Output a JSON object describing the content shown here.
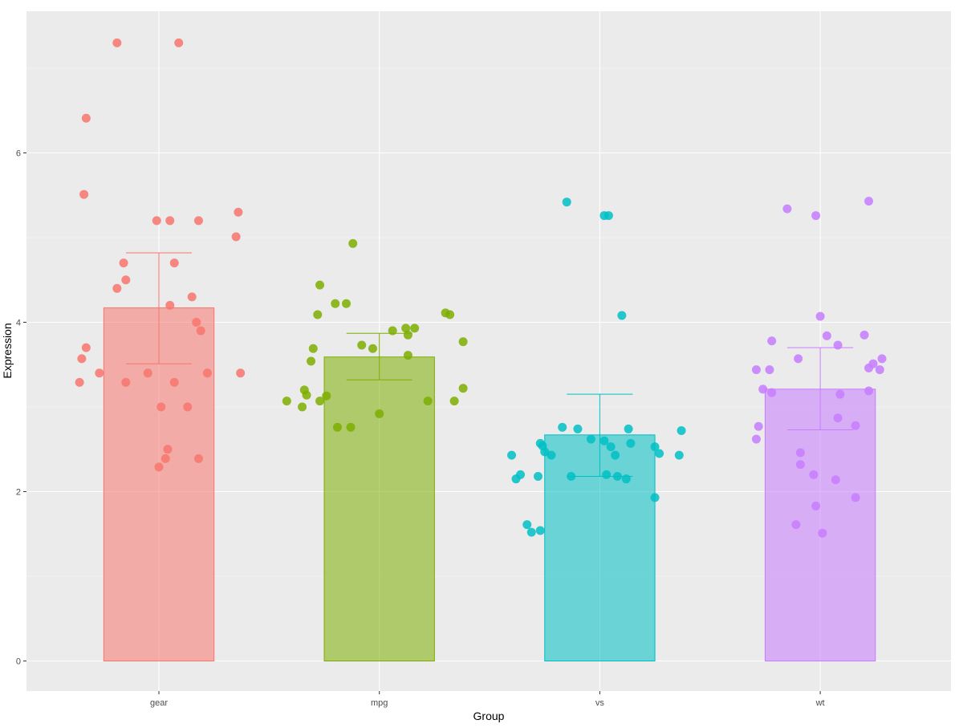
{
  "chart_data": {
    "type": "bar",
    "title": "",
    "xlabel": "Group",
    "ylabel": "Expression",
    "ylim": [
      -0.4,
      7.6
    ],
    "yticks": [
      0,
      2,
      4,
      6
    ],
    "grid": true,
    "colors": {
      "panel_bg": "#EBEBEB",
      "grid_major": "#FFFFFF",
      "grid_minor": "#F5F5F5"
    },
    "categories": [
      "gear",
      "mpg",
      "vs",
      "wt"
    ],
    "series": [
      {
        "name": "gear",
        "color": "#F8766D",
        "mean": 4.17,
        "error_low": 3.51,
        "error_high": 4.82,
        "points": [
          {
            "dx": -0.19,
            "y": 7.3
          },
          {
            "dx": 0.09,
            "y": 7.3
          },
          {
            "dx": -0.33,
            "y": 6.41
          },
          {
            "dx": -0.34,
            "y": 5.51
          },
          {
            "dx": -0.01,
            "y": 5.2
          },
          {
            "dx": 0.05,
            "y": 5.2
          },
          {
            "dx": 0.18,
            "y": 5.2
          },
          {
            "dx": 0.36,
            "y": 5.3
          },
          {
            "dx": 0.35,
            "y": 5.01
          },
          {
            "dx": -0.16,
            "y": 4.7
          },
          {
            "dx": 0.07,
            "y": 4.7
          },
          {
            "dx": -0.15,
            "y": 4.5
          },
          {
            "dx": -0.19,
            "y": 4.4
          },
          {
            "dx": 0.15,
            "y": 4.3
          },
          {
            "dx": 0.05,
            "y": 4.2
          },
          {
            "dx": 0.17,
            "y": 4.0
          },
          {
            "dx": 0.19,
            "y": 3.9
          },
          {
            "dx": -0.33,
            "y": 3.7
          },
          {
            "dx": -0.35,
            "y": 3.57
          },
          {
            "dx": -0.27,
            "y": 3.4
          },
          {
            "dx": -0.05,
            "y": 3.4
          },
          {
            "dx": 0.22,
            "y": 3.4
          },
          {
            "dx": 0.37,
            "y": 3.4
          },
          {
            "dx": -0.36,
            "y": 3.29
          },
          {
            "dx": -0.15,
            "y": 3.29
          },
          {
            "dx": 0.07,
            "y": 3.29
          },
          {
            "dx": 0.01,
            "y": 3.0
          },
          {
            "dx": 0.13,
            "y": 3.0
          },
          {
            "dx": 0.04,
            "y": 2.5
          },
          {
            "dx": 0.03,
            "y": 2.39
          },
          {
            "dx": 0.18,
            "y": 2.39
          },
          {
            "dx": 0.0,
            "y": 2.29
          }
        ]
      },
      {
        "name": "mpg",
        "color": "#7CAE00",
        "mean": 3.59,
        "error_low": 3.32,
        "error_high": 3.87,
        "points": [
          {
            "dx": -0.12,
            "y": 4.93
          },
          {
            "dx": -0.27,
            "y": 4.44
          },
          {
            "dx": -0.2,
            "y": 4.22
          },
          {
            "dx": -0.15,
            "y": 4.22
          },
          {
            "dx": -0.28,
            "y": 4.09
          },
          {
            "dx": 0.3,
            "y": 4.11
          },
          {
            "dx": 0.32,
            "y": 4.09
          },
          {
            "dx": 0.12,
            "y": 3.93
          },
          {
            "dx": 0.16,
            "y": 3.93
          },
          {
            "dx": 0.06,
            "y": 3.9
          },
          {
            "dx": 0.13,
            "y": 3.85
          },
          {
            "dx": 0.38,
            "y": 3.77
          },
          {
            "dx": -0.08,
            "y": 3.73
          },
          {
            "dx": -0.03,
            "y": 3.69
          },
          {
            "dx": -0.3,
            "y": 3.69
          },
          {
            "dx": 0.13,
            "y": 3.61
          },
          {
            "dx": -0.31,
            "y": 3.54
          },
          {
            "dx": 0.38,
            "y": 3.22
          },
          {
            "dx": -0.34,
            "y": 3.2
          },
          {
            "dx": -0.33,
            "y": 3.14
          },
          {
            "dx": -0.27,
            "y": 3.07
          },
          {
            "dx": -0.24,
            "y": 3.13
          },
          {
            "dx": -0.42,
            "y": 3.07
          },
          {
            "dx": 0.22,
            "y": 3.07
          },
          {
            "dx": 0.34,
            "y": 3.07
          },
          {
            "dx": -0.35,
            "y": 3.0
          },
          {
            "dx": 0.0,
            "y": 2.92
          },
          {
            "dx": -0.19,
            "y": 2.76
          },
          {
            "dx": -0.13,
            "y": 2.76
          }
        ]
      },
      {
        "name": "vs",
        "color": "#00BFC4",
        "mean": 2.67,
        "error_low": 2.18,
        "error_high": 3.15,
        "points": [
          {
            "dx": -0.15,
            "y": 5.42
          },
          {
            "dx": 0.02,
            "y": 5.26
          },
          {
            "dx": 0.04,
            "y": 5.26
          },
          {
            "dx": 0.1,
            "y": 4.08
          },
          {
            "dx": -0.17,
            "y": 2.76
          },
          {
            "dx": -0.1,
            "y": 2.74
          },
          {
            "dx": 0.13,
            "y": 2.74
          },
          {
            "dx": 0.37,
            "y": 2.72
          },
          {
            "dx": -0.04,
            "y": 2.62
          },
          {
            "dx": 0.02,
            "y": 2.6
          },
          {
            "dx": -0.27,
            "y": 2.57
          },
          {
            "dx": -0.26,
            "y": 2.54
          },
          {
            "dx": 0.14,
            "y": 2.57
          },
          {
            "dx": 0.05,
            "y": 2.53
          },
          {
            "dx": 0.25,
            "y": 2.53
          },
          {
            "dx": -0.25,
            "y": 2.47
          },
          {
            "dx": 0.27,
            "y": 2.45
          },
          {
            "dx": -0.4,
            "y": 2.43
          },
          {
            "dx": -0.22,
            "y": 2.43
          },
          {
            "dx": 0.07,
            "y": 2.43
          },
          {
            "dx": 0.36,
            "y": 2.43
          },
          {
            "dx": -0.36,
            "y": 2.2
          },
          {
            "dx": 0.03,
            "y": 2.2
          },
          {
            "dx": 0.08,
            "y": 2.18
          },
          {
            "dx": -0.28,
            "y": 2.18
          },
          {
            "dx": -0.13,
            "y": 2.18
          },
          {
            "dx": -0.38,
            "y": 2.15
          },
          {
            "dx": 0.12,
            "y": 2.15
          },
          {
            "dx": 0.25,
            "y": 1.93
          },
          {
            "dx": -0.33,
            "y": 1.61
          },
          {
            "dx": -0.31,
            "y": 1.52
          },
          {
            "dx": -0.27,
            "y": 1.54
          }
        ]
      },
      {
        "name": "wt",
        "color": "#C77CFF",
        "mean": 3.21,
        "error_low": 2.73,
        "error_high": 3.7,
        "points": [
          {
            "dx": 0.22,
            "y": 5.43
          },
          {
            "dx": -0.15,
            "y": 5.34
          },
          {
            "dx": -0.02,
            "y": 5.26
          },
          {
            "dx": 0.0,
            "y": 4.07
          },
          {
            "dx": 0.03,
            "y": 3.84
          },
          {
            "dx": 0.2,
            "y": 3.85
          },
          {
            "dx": -0.22,
            "y": 3.78
          },
          {
            "dx": 0.08,
            "y": 3.73
          },
          {
            "dx": -0.1,
            "y": 3.57
          },
          {
            "dx": 0.28,
            "y": 3.57
          },
          {
            "dx": 0.24,
            "y": 3.51
          },
          {
            "dx": 0.22,
            "y": 3.46
          },
          {
            "dx": 0.27,
            "y": 3.44
          },
          {
            "dx": -0.29,
            "y": 3.44
          },
          {
            "dx": -0.23,
            "y": 3.44
          },
          {
            "dx": -0.26,
            "y": 3.21
          },
          {
            "dx": -0.22,
            "y": 3.17
          },
          {
            "dx": 0.22,
            "y": 3.19
          },
          {
            "dx": 0.09,
            "y": 3.15
          },
          {
            "dx": 0.08,
            "y": 2.87
          },
          {
            "dx": 0.16,
            "y": 2.78
          },
          {
            "dx": -0.28,
            "y": 2.77
          },
          {
            "dx": -0.29,
            "y": 2.62
          },
          {
            "dx": -0.09,
            "y": 2.46
          },
          {
            "dx": -0.09,
            "y": 2.32
          },
          {
            "dx": -0.03,
            "y": 2.2
          },
          {
            "dx": 0.07,
            "y": 2.14
          },
          {
            "dx": 0.16,
            "y": 1.93
          },
          {
            "dx": -0.02,
            "y": 1.83
          },
          {
            "dx": -0.11,
            "y": 1.61
          },
          {
            "dx": 0.01,
            "y": 1.51
          }
        ]
      }
    ]
  }
}
